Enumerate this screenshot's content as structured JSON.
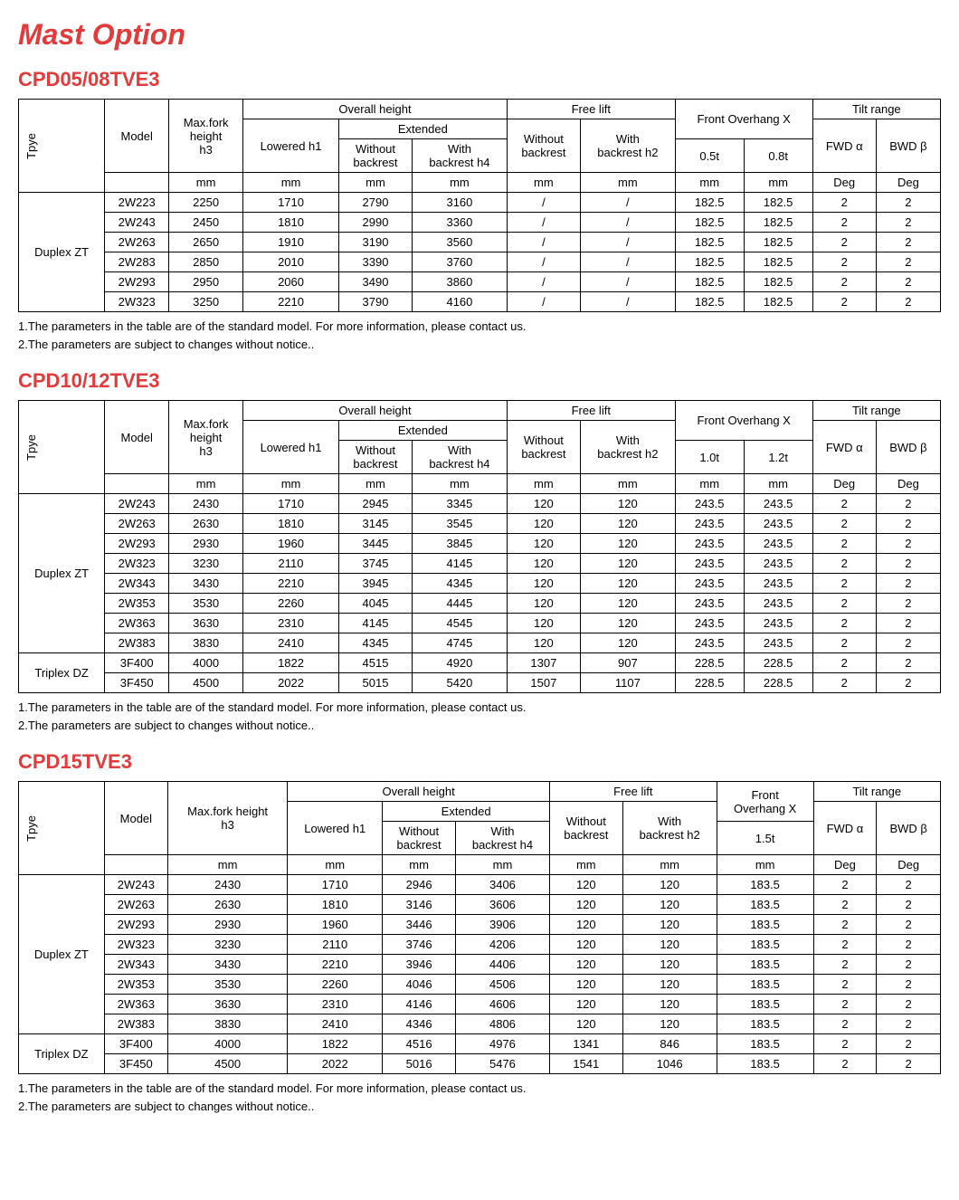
{
  "page": {
    "title": "Mast Option",
    "footnote1": "1.The parameters in the table are of the standard model.  For more information, please contact us.",
    "footnote2": "2.The parameters are subject to changes without notice.."
  },
  "headers": {
    "type": "Tpye",
    "model": "Model",
    "maxfork": "Max.fork height h3",
    "maxfork_short": "Max.fork\nheight\nh3",
    "overall": "Overall height",
    "lowered": "Lowered  h1",
    "extended": "Extended",
    "withoutbr": "Without backrest",
    "withbr": "With backrest h4",
    "freelift": "Free lift",
    "fl_without": "Without backrest",
    "fl_with": "With backrest h2",
    "frontover": "Front Overhang  X",
    "tiltrange": "Tilt range",
    "fwd": "FWD  α",
    "bwd": "BWD  β",
    "mm": "mm",
    "deg": "Deg"
  },
  "t1": {
    "title": "CPD05/08TVE3",
    "overhang_cols": [
      "0.5t",
      "0.8t"
    ],
    "groups": [
      {
        "name": "Duplex ZT",
        "rows": [
          [
            "2W223",
            "2250",
            "1710",
            "2790",
            "3160",
            "/",
            "/",
            "182.5",
            "182.5",
            "2",
            "2"
          ],
          [
            "2W243",
            "2450",
            "1810",
            "2990",
            "3360",
            "/",
            "/",
            "182.5",
            "182.5",
            "2",
            "2"
          ],
          [
            "2W263",
            "2650",
            "1910",
            "3190",
            "3560",
            "/",
            "/",
            "182.5",
            "182.5",
            "2",
            "2"
          ],
          [
            "2W283",
            "2850",
            "2010",
            "3390",
            "3760",
            "/",
            "/",
            "182.5",
            "182.5",
            "2",
            "2"
          ],
          [
            "2W293",
            "2950",
            "2060",
            "3490",
            "3860",
            "/",
            "/",
            "182.5",
            "182.5",
            "2",
            "2"
          ],
          [
            "2W323",
            "3250",
            "2210",
            "3790",
            "4160",
            "/",
            "/",
            "182.5",
            "182.5",
            "2",
            "2"
          ]
        ]
      }
    ]
  },
  "t2": {
    "title": "CPD10/12TVE3",
    "overhang_cols": [
      "1.0t",
      "1.2t"
    ],
    "groups": [
      {
        "name": "Duplex ZT",
        "rows": [
          [
            "2W243",
            "2430",
            "1710",
            "2945",
            "3345",
            "120",
            "120",
            "243.5",
            "243.5",
            "2",
            "2"
          ],
          [
            "2W263",
            "2630",
            "1810",
            "3145",
            "3545",
            "120",
            "120",
            "243.5",
            "243.5",
            "2",
            "2"
          ],
          [
            "2W293",
            "2930",
            "1960",
            "3445",
            "3845",
            "120",
            "120",
            "243.5",
            "243.5",
            "2",
            "2"
          ],
          [
            "2W323",
            "3230",
            "2110",
            "3745",
            "4145",
            "120",
            "120",
            "243.5",
            "243.5",
            "2",
            "2"
          ],
          [
            "2W343",
            "3430",
            "2210",
            "3945",
            "4345",
            "120",
            "120",
            "243.5",
            "243.5",
            "2",
            "2"
          ],
          [
            "2W353",
            "3530",
            "2260",
            "4045",
            "4445",
            "120",
            "120",
            "243.5",
            "243.5",
            "2",
            "2"
          ],
          [
            "2W363",
            "3630",
            "2310",
            "4145",
            "4545",
            "120",
            "120",
            "243.5",
            "243.5",
            "2",
            "2"
          ],
          [
            "2W383",
            "3830",
            "2410",
            "4345",
            "4745",
            "120",
            "120",
            "243.5",
            "243.5",
            "2",
            "2"
          ]
        ]
      },
      {
        "name": "Triplex DZ",
        "rows": [
          [
            "3F400",
            "4000",
            "1822",
            "4515",
            "4920",
            "1307",
            "907",
            "228.5",
            "228.5",
            "2",
            "2"
          ],
          [
            "3F450",
            "4500",
            "2022",
            "5015",
            "5420",
            "1507",
            "1107",
            "228.5",
            "228.5",
            "2",
            "2"
          ]
        ]
      }
    ]
  },
  "t3": {
    "title": "CPD15TVE3",
    "overhang_cols": [
      "1.5t"
    ],
    "groups": [
      {
        "name": "Duplex ZT",
        "rows": [
          [
            "2W243",
            "2430",
            "1710",
            "2946",
            "3406",
            "120",
            "120",
            "183.5",
            "2",
            "2"
          ],
          [
            "2W263",
            "2630",
            "1810",
            "3146",
            "3606",
            "120",
            "120",
            "183.5",
            "2",
            "2"
          ],
          [
            "2W293",
            "2930",
            "1960",
            "3446",
            "3906",
            "120",
            "120",
            "183.5",
            "2",
            "2"
          ],
          [
            "2W323",
            "3230",
            "2110",
            "3746",
            "4206",
            "120",
            "120",
            "183.5",
            "2",
            "2"
          ],
          [
            "2W343",
            "3430",
            "2210",
            "3946",
            "4406",
            "120",
            "120",
            "183.5",
            "2",
            "2"
          ],
          [
            "2W353",
            "3530",
            "2260",
            "4046",
            "4506",
            "120",
            "120",
            "183.5",
            "2",
            "2"
          ],
          [
            "2W363",
            "3630",
            "2310",
            "4146",
            "4606",
            "120",
            "120",
            "183.5",
            "2",
            "2"
          ],
          [
            "2W383",
            "3830",
            "2410",
            "4346",
            "4806",
            "120",
            "120",
            "183.5",
            "2",
            "2"
          ]
        ]
      },
      {
        "name": "Triplex DZ",
        "rows": [
          [
            "3F400",
            "4000",
            "1822",
            "4516",
            "4976",
            "1341",
            "846",
            "183.5",
            "2",
            "2"
          ],
          [
            "3F450",
            "4500",
            "2022",
            "5016",
            "5476",
            "1541",
            "1046",
            "183.5",
            "2",
            "2"
          ]
        ]
      }
    ]
  }
}
